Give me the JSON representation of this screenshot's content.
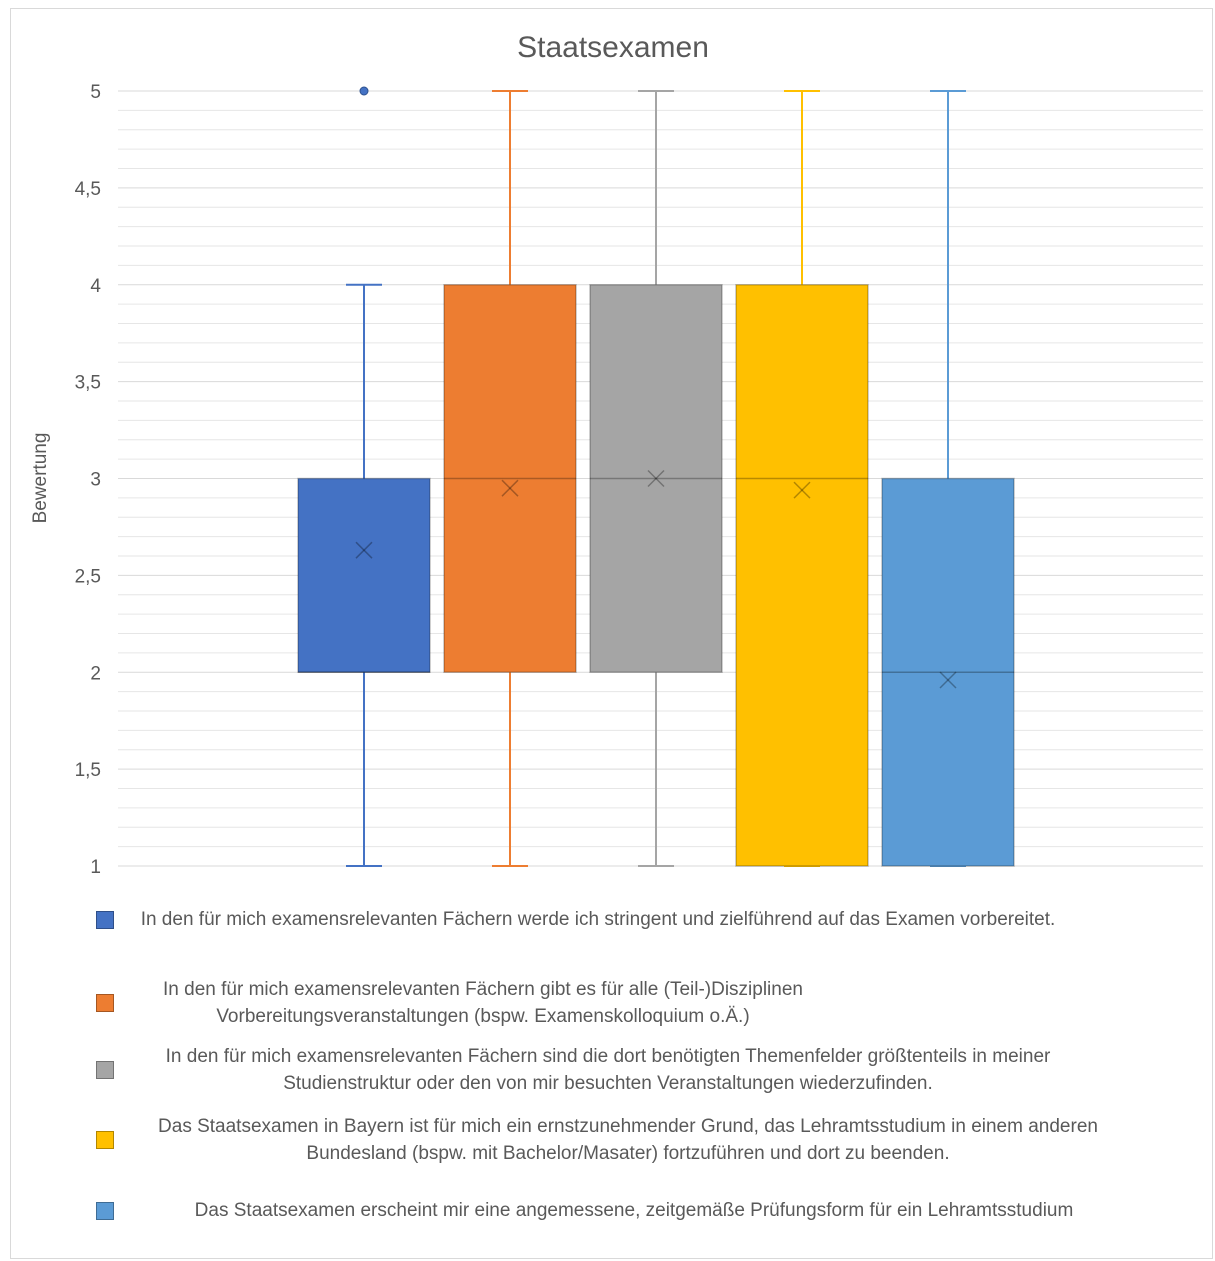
{
  "chart_data": {
    "type": "box",
    "title": "Staatsexamen",
    "ylabel": "Bewertung",
    "xlabel": "",
    "ylim": [
      1,
      5
    ],
    "y_ticks": [
      "1",
      "1,5",
      "2",
      "2,5",
      "3",
      "3,5",
      "4",
      "4,5",
      "5"
    ],
    "grid": true,
    "legend_position": "bottom",
    "series": [
      {
        "name": "In den für mich examensrelevanten Fächern werde ich stringent und zielführend auf das Examen vorbereitet.",
        "color": "#4472C4",
        "whisker_low": 1,
        "q1": 2,
        "median": 2,
        "q3": 3,
        "whisker_high": 4,
        "mean": 2.63,
        "outliers": [
          5
        ]
      },
      {
        "name": "In den für mich examensrelevanten Fächern gibt es für alle (Teil-)Disziplinen Vorbereitungsveranstaltungen (bspw. Examenskolloquium o.Ä.)",
        "color": "#ED7D31",
        "whisker_low": 1,
        "q1": 2,
        "median": 3,
        "q3": 4,
        "whisker_high": 5,
        "mean": 2.95,
        "outliers": []
      },
      {
        "name": "In den für mich examensrelevanten Fächern sind die dort benötigten Themenfelder größtenteils in meiner Studienstruktur oder den von mir besuchten Veranstaltungen wiederzufinden.",
        "color": "#A5A5A5",
        "whisker_low": 1,
        "q1": 2,
        "median": 3,
        "q3": 4,
        "whisker_high": 5,
        "mean": 3.0,
        "outliers": []
      },
      {
        "name": "Das Staatsexamen in Bayern ist für mich ein ernstzunehmender Grund, das Lehramtsstudium in einem anderen Bundesland (bspw. mit Bachelor/Masater) fortzuführen und dort zu beenden.",
        "color": "#FFC000",
        "whisker_low": 1,
        "q1": 1,
        "median": 3,
        "q3": 4,
        "whisker_high": 5,
        "mean": 2.94,
        "outliers": []
      },
      {
        "name": "Das Staatsexamen erscheint mir eine angemessene, zeitgemäße Prüfungsform für ein Lehramtsstudium",
        "color": "#5B9BD5",
        "whisker_low": 1,
        "q1": 1,
        "median": 2,
        "q3": 3,
        "whisker_high": 5,
        "mean": 1.96,
        "outliers": []
      }
    ]
  }
}
